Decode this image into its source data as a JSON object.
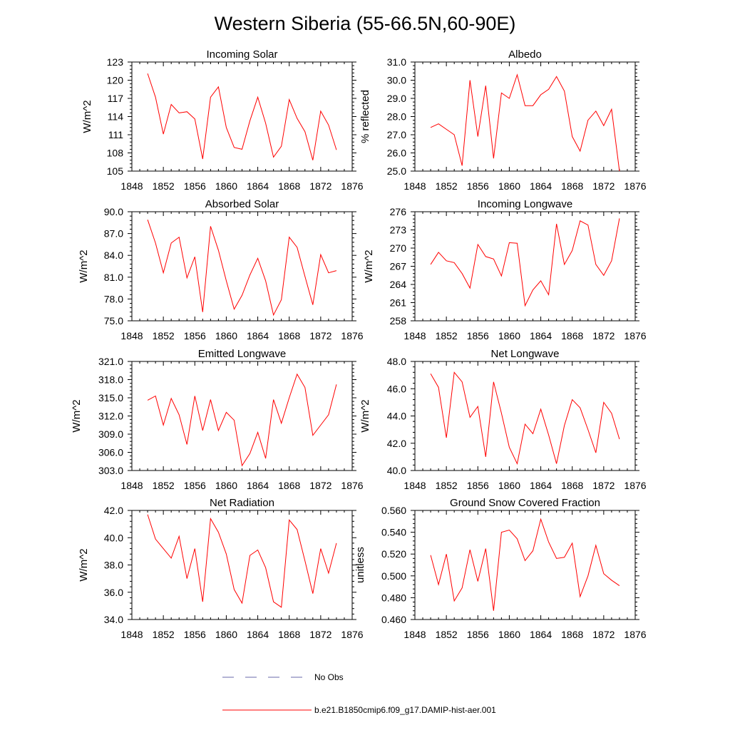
{
  "figure": {
    "title": "Western Siberia (55-66.5N,60-90E)"
  },
  "legend": [
    {
      "label": "No Obs",
      "color": "#6a6aa8",
      "style": "dashed"
    },
    {
      "label": "b.e21.B1850cmip6.f09_g17.DAMIP-hist-aer.001",
      "color": "#ff0000",
      "style": "solid"
    }
  ],
  "chart_data": [
    {
      "type": "line",
      "title": "Incoming Solar",
      "xlabel": "",
      "ylabel": "W/m^2",
      "xlim": [
        1848,
        1876
      ],
      "ylim": [
        105,
        123
      ],
      "xticks": [
        1848,
        1852,
        1856,
        1860,
        1864,
        1868,
        1872,
        1876
      ],
      "xtick_labels": [
        "1848",
        "1852",
        "1856",
        "1860",
        "1864",
        "1868",
        "1872",
        "1876"
      ],
      "yticks": [
        105,
        108,
        111,
        114,
        117,
        120,
        123
      ],
      "ytick_labels": [
        "105",
        "108",
        "111",
        "114",
        "117",
        "120",
        "123"
      ],
      "x": [
        1850,
        1851,
        1852,
        1853,
        1854,
        1855,
        1856,
        1857,
        1858,
        1859,
        1860,
        1861,
        1862,
        1863,
        1864,
        1865,
        1866,
        1867,
        1868,
        1869,
        1870,
        1871,
        1872,
        1873,
        1874
      ],
      "series": [
        {
          "color": "#ff0000",
          "values": [
            121.1,
            117.2,
            111.1,
            116.0,
            114.6,
            114.8,
            113.6,
            107.0,
            117.2,
            118.9,
            112.2,
            108.9,
            108.6,
            113.3,
            117.2,
            112.9,
            107.3,
            109.1,
            116.8,
            113.7,
            111.5,
            106.8,
            114.9,
            112.6,
            108.5
          ]
        }
      ]
    },
    {
      "type": "line",
      "title": "Albedo",
      "xlabel": "",
      "ylabel": "% reflected",
      "xlim": [
        1848,
        1876
      ],
      "ylim": [
        25.0,
        31.0
      ],
      "xticks": [
        1848,
        1852,
        1856,
        1860,
        1864,
        1868,
        1872,
        1876
      ],
      "xtick_labels": [
        "1848",
        "1852",
        "1856",
        "1860",
        "1864",
        "1868",
        "1872",
        "1876"
      ],
      "yticks": [
        25,
        26,
        27,
        28,
        29,
        30,
        31
      ],
      "ytick_labels": [
        "25.0",
        "26.0",
        "27.0",
        "28.0",
        "29.0",
        "30.0",
        "31.0"
      ],
      "x": [
        1850,
        1851,
        1852,
        1853,
        1854,
        1855,
        1856,
        1857,
        1858,
        1859,
        1860,
        1861,
        1862,
        1863,
        1864,
        1865,
        1866,
        1867,
        1868,
        1869,
        1870,
        1871,
        1872,
        1873,
        1874
      ],
      "series": [
        {
          "color": "#ff0000",
          "values": [
            27.4,
            27.6,
            27.3,
            27.0,
            25.3,
            30.0,
            26.9,
            29.7,
            25.7,
            29.3,
            29.0,
            30.3,
            28.6,
            28.6,
            29.2,
            29.5,
            30.2,
            29.4,
            26.9,
            26.1,
            27.8,
            28.3,
            27.5,
            28.4,
            25.0
          ]
        }
      ]
    },
    {
      "type": "line",
      "title": "Absorbed Solar",
      "xlabel": "",
      "ylabel": "W/m^2",
      "xlim": [
        1848,
        1876
      ],
      "ylim": [
        75.0,
        90.0
      ],
      "xticks": [
        1848,
        1852,
        1856,
        1860,
        1864,
        1868,
        1872,
        1876
      ],
      "xtick_labels": [
        "1848",
        "1852",
        "1856",
        "1860",
        "1864",
        "1868",
        "1872",
        "1876"
      ],
      "yticks": [
        75,
        78,
        81,
        84,
        87,
        90
      ],
      "ytick_labels": [
        "75.0",
        "78.0",
        "81.0",
        "84.0",
        "87.0",
        "90.0"
      ],
      "x": [
        1850,
        1851,
        1852,
        1853,
        1854,
        1855,
        1856,
        1857,
        1858,
        1859,
        1860,
        1861,
        1862,
        1863,
        1864,
        1865,
        1866,
        1867,
        1868,
        1869,
        1870,
        1871,
        1872,
        1873,
        1874
      ],
      "series": [
        {
          "color": "#ff0000",
          "values": [
            88.9,
            85.7,
            81.6,
            85.7,
            86.5,
            80.9,
            83.8,
            76.2,
            88.0,
            84.7,
            80.5,
            76.6,
            78.5,
            81.3,
            83.6,
            80.5,
            75.8,
            77.9,
            86.5,
            85.1,
            81.1,
            77.2,
            84.1,
            81.6,
            81.9
          ]
        }
      ]
    },
    {
      "type": "line",
      "title": "Incoming Longwave",
      "xlabel": "",
      "ylabel": "W/m^2",
      "xlim": [
        1848,
        1876
      ],
      "ylim": [
        258,
        276
      ],
      "xticks": [
        1848,
        1852,
        1856,
        1860,
        1864,
        1868,
        1872,
        1876
      ],
      "xtick_labels": [
        "1848",
        "1852",
        "1856",
        "1860",
        "1864",
        "1868",
        "1872",
        "1876"
      ],
      "yticks": [
        258,
        261,
        264,
        267,
        270,
        273,
        276
      ],
      "ytick_labels": [
        "258",
        "261",
        "264",
        "267",
        "270",
        "273",
        "276"
      ],
      "x": [
        1850,
        1851,
        1852,
        1853,
        1854,
        1855,
        1856,
        1857,
        1858,
        1859,
        1860,
        1861,
        1862,
        1863,
        1864,
        1865,
        1866,
        1867,
        1868,
        1869,
        1870,
        1871,
        1872,
        1873,
        1874
      ],
      "series": [
        {
          "color": "#ff0000",
          "values": [
            267.3,
            269.3,
            267.9,
            267.6,
            265.8,
            263.4,
            270.6,
            268.6,
            268.2,
            265.4,
            270.9,
            270.8,
            260.5,
            263.1,
            264.6,
            262.3,
            274.0,
            267.3,
            269.6,
            274.5,
            273.8,
            267.3,
            265.5,
            267.9,
            274.9
          ]
        }
      ]
    },
    {
      "type": "line",
      "title": "Emitted Longwave",
      "xlabel": "",
      "ylabel": "W/m^2",
      "xlim": [
        1848,
        1876
      ],
      "ylim": [
        303.0,
        321.0
      ],
      "xticks": [
        1848,
        1852,
        1856,
        1860,
        1864,
        1868,
        1872,
        1876
      ],
      "xtick_labels": [
        "1848",
        "1852",
        "1856",
        "1860",
        "1864",
        "1868",
        "1872",
        "1876"
      ],
      "yticks": [
        303,
        306,
        309,
        312,
        315,
        318,
        321
      ],
      "ytick_labels": [
        "303.0",
        "306.0",
        "309.0",
        "312.0",
        "315.0",
        "318.0",
        "321.0"
      ],
      "x": [
        1850,
        1851,
        1852,
        1853,
        1854,
        1855,
        1856,
        1857,
        1858,
        1859,
        1860,
        1861,
        1862,
        1863,
        1864,
        1865,
        1866,
        1867,
        1868,
        1869,
        1870,
        1871,
        1872,
        1873,
        1874
      ],
      "series": [
        {
          "color": "#ff0000",
          "values": [
            314.6,
            315.3,
            310.5,
            314.9,
            312.2,
            307.3,
            315.3,
            309.6,
            314.7,
            309.6,
            312.6,
            311.3,
            303.8,
            305.8,
            309.3,
            305.0,
            314.7,
            310.8,
            315.0,
            318.9,
            316.7,
            308.8,
            310.5,
            312.2,
            317.2
          ]
        }
      ]
    },
    {
      "type": "line",
      "title": "Net Longwave",
      "xlabel": "",
      "ylabel": "W/m^2",
      "xlim": [
        1848,
        1876
      ],
      "ylim": [
        40.0,
        48.0
      ],
      "xticks": [
        1848,
        1852,
        1856,
        1860,
        1864,
        1868,
        1872,
        1876
      ],
      "xtick_labels": [
        "1848",
        "1852",
        "1856",
        "1860",
        "1864",
        "1868",
        "1872",
        "1876"
      ],
      "yticks": [
        40,
        42,
        44,
        46,
        48
      ],
      "ytick_labels": [
        "40.0",
        "42.0",
        "44.0",
        "46.0",
        "48.0"
      ],
      "x": [
        1850,
        1851,
        1852,
        1853,
        1854,
        1855,
        1856,
        1857,
        1858,
        1859,
        1860,
        1861,
        1862,
        1863,
        1864,
        1865,
        1866,
        1867,
        1868,
        1869,
        1870,
        1871,
        1872,
        1873,
        1874
      ],
      "series": [
        {
          "color": "#ff0000",
          "values": [
            47.1,
            46.1,
            42.4,
            47.2,
            46.5,
            43.9,
            44.7,
            41.0,
            46.5,
            44.2,
            41.7,
            40.5,
            43.4,
            42.7,
            44.5,
            42.6,
            40.5,
            43.3,
            45.2,
            44.6,
            43.0,
            41.3,
            45.0,
            44.2,
            42.3
          ]
        }
      ]
    },
    {
      "type": "line",
      "title": "Net Radiation",
      "xlabel": "",
      "ylabel": "W/m^2",
      "xlim": [
        1848,
        1876
      ],
      "ylim": [
        34.0,
        42.0
      ],
      "xticks": [
        1848,
        1852,
        1856,
        1860,
        1864,
        1868,
        1872,
        1876
      ],
      "xtick_labels": [
        "1848",
        "1852",
        "1856",
        "1860",
        "1864",
        "1868",
        "1872",
        "1876"
      ],
      "yticks": [
        34,
        36,
        38,
        40,
        42
      ],
      "ytick_labels": [
        "34.0",
        "36.0",
        "38.0",
        "40.0",
        "42.0"
      ],
      "x": [
        1850,
        1851,
        1852,
        1853,
        1854,
        1855,
        1856,
        1857,
        1858,
        1859,
        1860,
        1861,
        1862,
        1863,
        1864,
        1865,
        1866,
        1867,
        1868,
        1869,
        1870,
        1871,
        1872,
        1873,
        1874
      ],
      "series": [
        {
          "color": "#ff0000",
          "values": [
            41.7,
            39.9,
            39.2,
            38.5,
            40.1,
            37.0,
            39.2,
            35.3,
            41.4,
            40.4,
            38.8,
            36.2,
            35.2,
            38.7,
            39.1,
            37.8,
            35.3,
            34.9,
            41.3,
            40.6,
            38.3,
            35.9,
            39.2,
            37.4,
            39.6
          ]
        }
      ]
    },
    {
      "type": "line",
      "title": "Ground Snow Covered Fraction",
      "xlabel": "",
      "ylabel": "unitless",
      "xlim": [
        1848,
        1876
      ],
      "ylim": [
        0.46,
        0.56
      ],
      "xticks": [
        1848,
        1852,
        1856,
        1860,
        1864,
        1868,
        1872,
        1876
      ],
      "xtick_labels": [
        "1848",
        "1852",
        "1856",
        "1860",
        "1864",
        "1868",
        "1872",
        "1876"
      ],
      "yticks": [
        0.46,
        0.48,
        0.5,
        0.52,
        0.54,
        0.56
      ],
      "ytick_labels": [
        "0.460",
        "0.480",
        "0.500",
        "0.520",
        "0.540",
        "0.560"
      ],
      "x": [
        1850,
        1851,
        1852,
        1853,
        1854,
        1855,
        1856,
        1857,
        1858,
        1859,
        1860,
        1861,
        1862,
        1863,
        1864,
        1865,
        1866,
        1867,
        1868,
        1869,
        1870,
        1871,
        1872,
        1873,
        1874
      ],
      "series": [
        {
          "color": "#ff0000",
          "values": [
            0.519,
            0.492,
            0.52,
            0.477,
            0.489,
            0.524,
            0.495,
            0.525,
            0.468,
            0.54,
            0.542,
            0.534,
            0.514,
            0.523,
            0.552,
            0.531,
            0.516,
            0.517,
            0.53,
            0.481,
            0.5,
            0.528,
            0.502,
            0.496,
            0.491
          ]
        }
      ]
    }
  ]
}
